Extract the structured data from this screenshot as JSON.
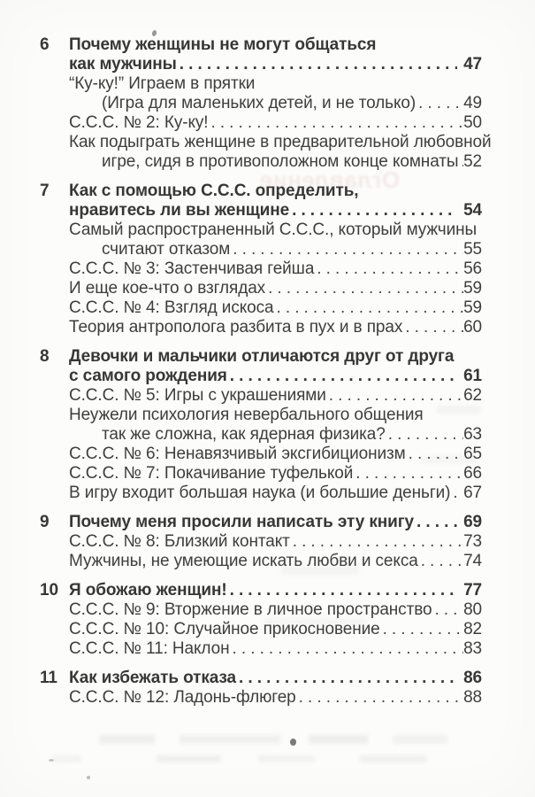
{
  "page": {
    "background": "#fcfcfa",
    "text_color": "#3e3e3e",
    "ghost_text": "Оглавление"
  },
  "toc": {
    "entries": [
      {
        "type": "chapter",
        "num": "6",
        "lines": [
          "Почему женщины не могут общаться",
          "как мужчины"
        ],
        "page": "47"
      },
      {
        "type": "sub",
        "lines": [
          "“Ку-ку!” Играем в прятки",
          "(Игра для маленьких детей, и не только)"
        ],
        "page": "49"
      },
      {
        "type": "sub",
        "lines": [
          "С.С.С. № 2:  Ку-ку!"
        ],
        "page": "50"
      },
      {
        "type": "sub",
        "lines": [
          "Как подыграть женщине в предварительной любовной",
          "игре, сидя в противоположном конце комнаты"
        ],
        "page": "52"
      },
      {
        "type": "chapter",
        "num": "7",
        "lines": [
          "Как с помощью С.С.С. определить,",
          "нравитесь ли вы женщине"
        ],
        "page": "54"
      },
      {
        "type": "sub",
        "lines": [
          "Самый распространенный С.С.С., который мужчины",
          "считают отказом"
        ],
        "page": "55"
      },
      {
        "type": "sub",
        "lines": [
          "С.С.С. № 3: Застенчивая гейша"
        ],
        "page": "56"
      },
      {
        "type": "sub",
        "lines": [
          "И еще кое-что о взглядах"
        ],
        "page": "59"
      },
      {
        "type": "sub",
        "lines": [
          "С.С.С. № 4: Взгляд искоса"
        ],
        "page": "59"
      },
      {
        "type": "sub",
        "lines": [
          "Теория антрополога разбита в пух и в прах"
        ],
        "page": "60"
      },
      {
        "type": "chapter",
        "num": "8",
        "lines": [
          "Девочки и мальчики отличаются друг от друга",
          "с самого рождения"
        ],
        "page": "61"
      },
      {
        "type": "sub",
        "lines": [
          "С.С.С. № 5: Игры с украшениями"
        ],
        "page": "62"
      },
      {
        "type": "sub",
        "lines": [
          "Неужели психология невербального общения",
          "так же сложна, как ядерная физика?"
        ],
        "page": "63"
      },
      {
        "type": "sub",
        "lines": [
          "С.С.С. № 6: Ненавязчивый эксгибиционизм"
        ],
        "page": "65"
      },
      {
        "type": "sub",
        "lines": [
          "С.С.С. № 7: Покачивание туфелькой"
        ],
        "page": "66"
      },
      {
        "type": "sub",
        "lines": [
          "В игру входит большая наука (и большие деньги)"
        ],
        "page": "67"
      },
      {
        "type": "chapter",
        "num": "9",
        "lines": [
          "Почему меня просили написать эту книгу"
        ],
        "page": "69"
      },
      {
        "type": "sub",
        "lines": [
          "С.С.С. № 8: Близкий контакт"
        ],
        "page": "73"
      },
      {
        "type": "sub",
        "lines": [
          "Мужчины, не умеющие искать любви и секса"
        ],
        "page": "74"
      },
      {
        "type": "chapter",
        "num": "10",
        "lines": [
          "Я обожаю женщин!"
        ],
        "page": "77"
      },
      {
        "type": "sub",
        "lines": [
          "С.С.С. № 9: Вторжение в личное пространство"
        ],
        "page": "80"
      },
      {
        "type": "sub",
        "lines": [
          "С.С.С. № 10: Случайное прикосновение"
        ],
        "page": "82"
      },
      {
        "type": "sub",
        "lines": [
          "С.С.С. № 11: Наклон"
        ],
        "page": "83"
      },
      {
        "type": "chapter",
        "num": "11",
        "lines": [
          "Как избежать отказа"
        ],
        "page": "86"
      },
      {
        "type": "sub",
        "lines": [
          "С.С.С. № 12: Ладонь-флюгер"
        ],
        "page": "88"
      }
    ]
  }
}
